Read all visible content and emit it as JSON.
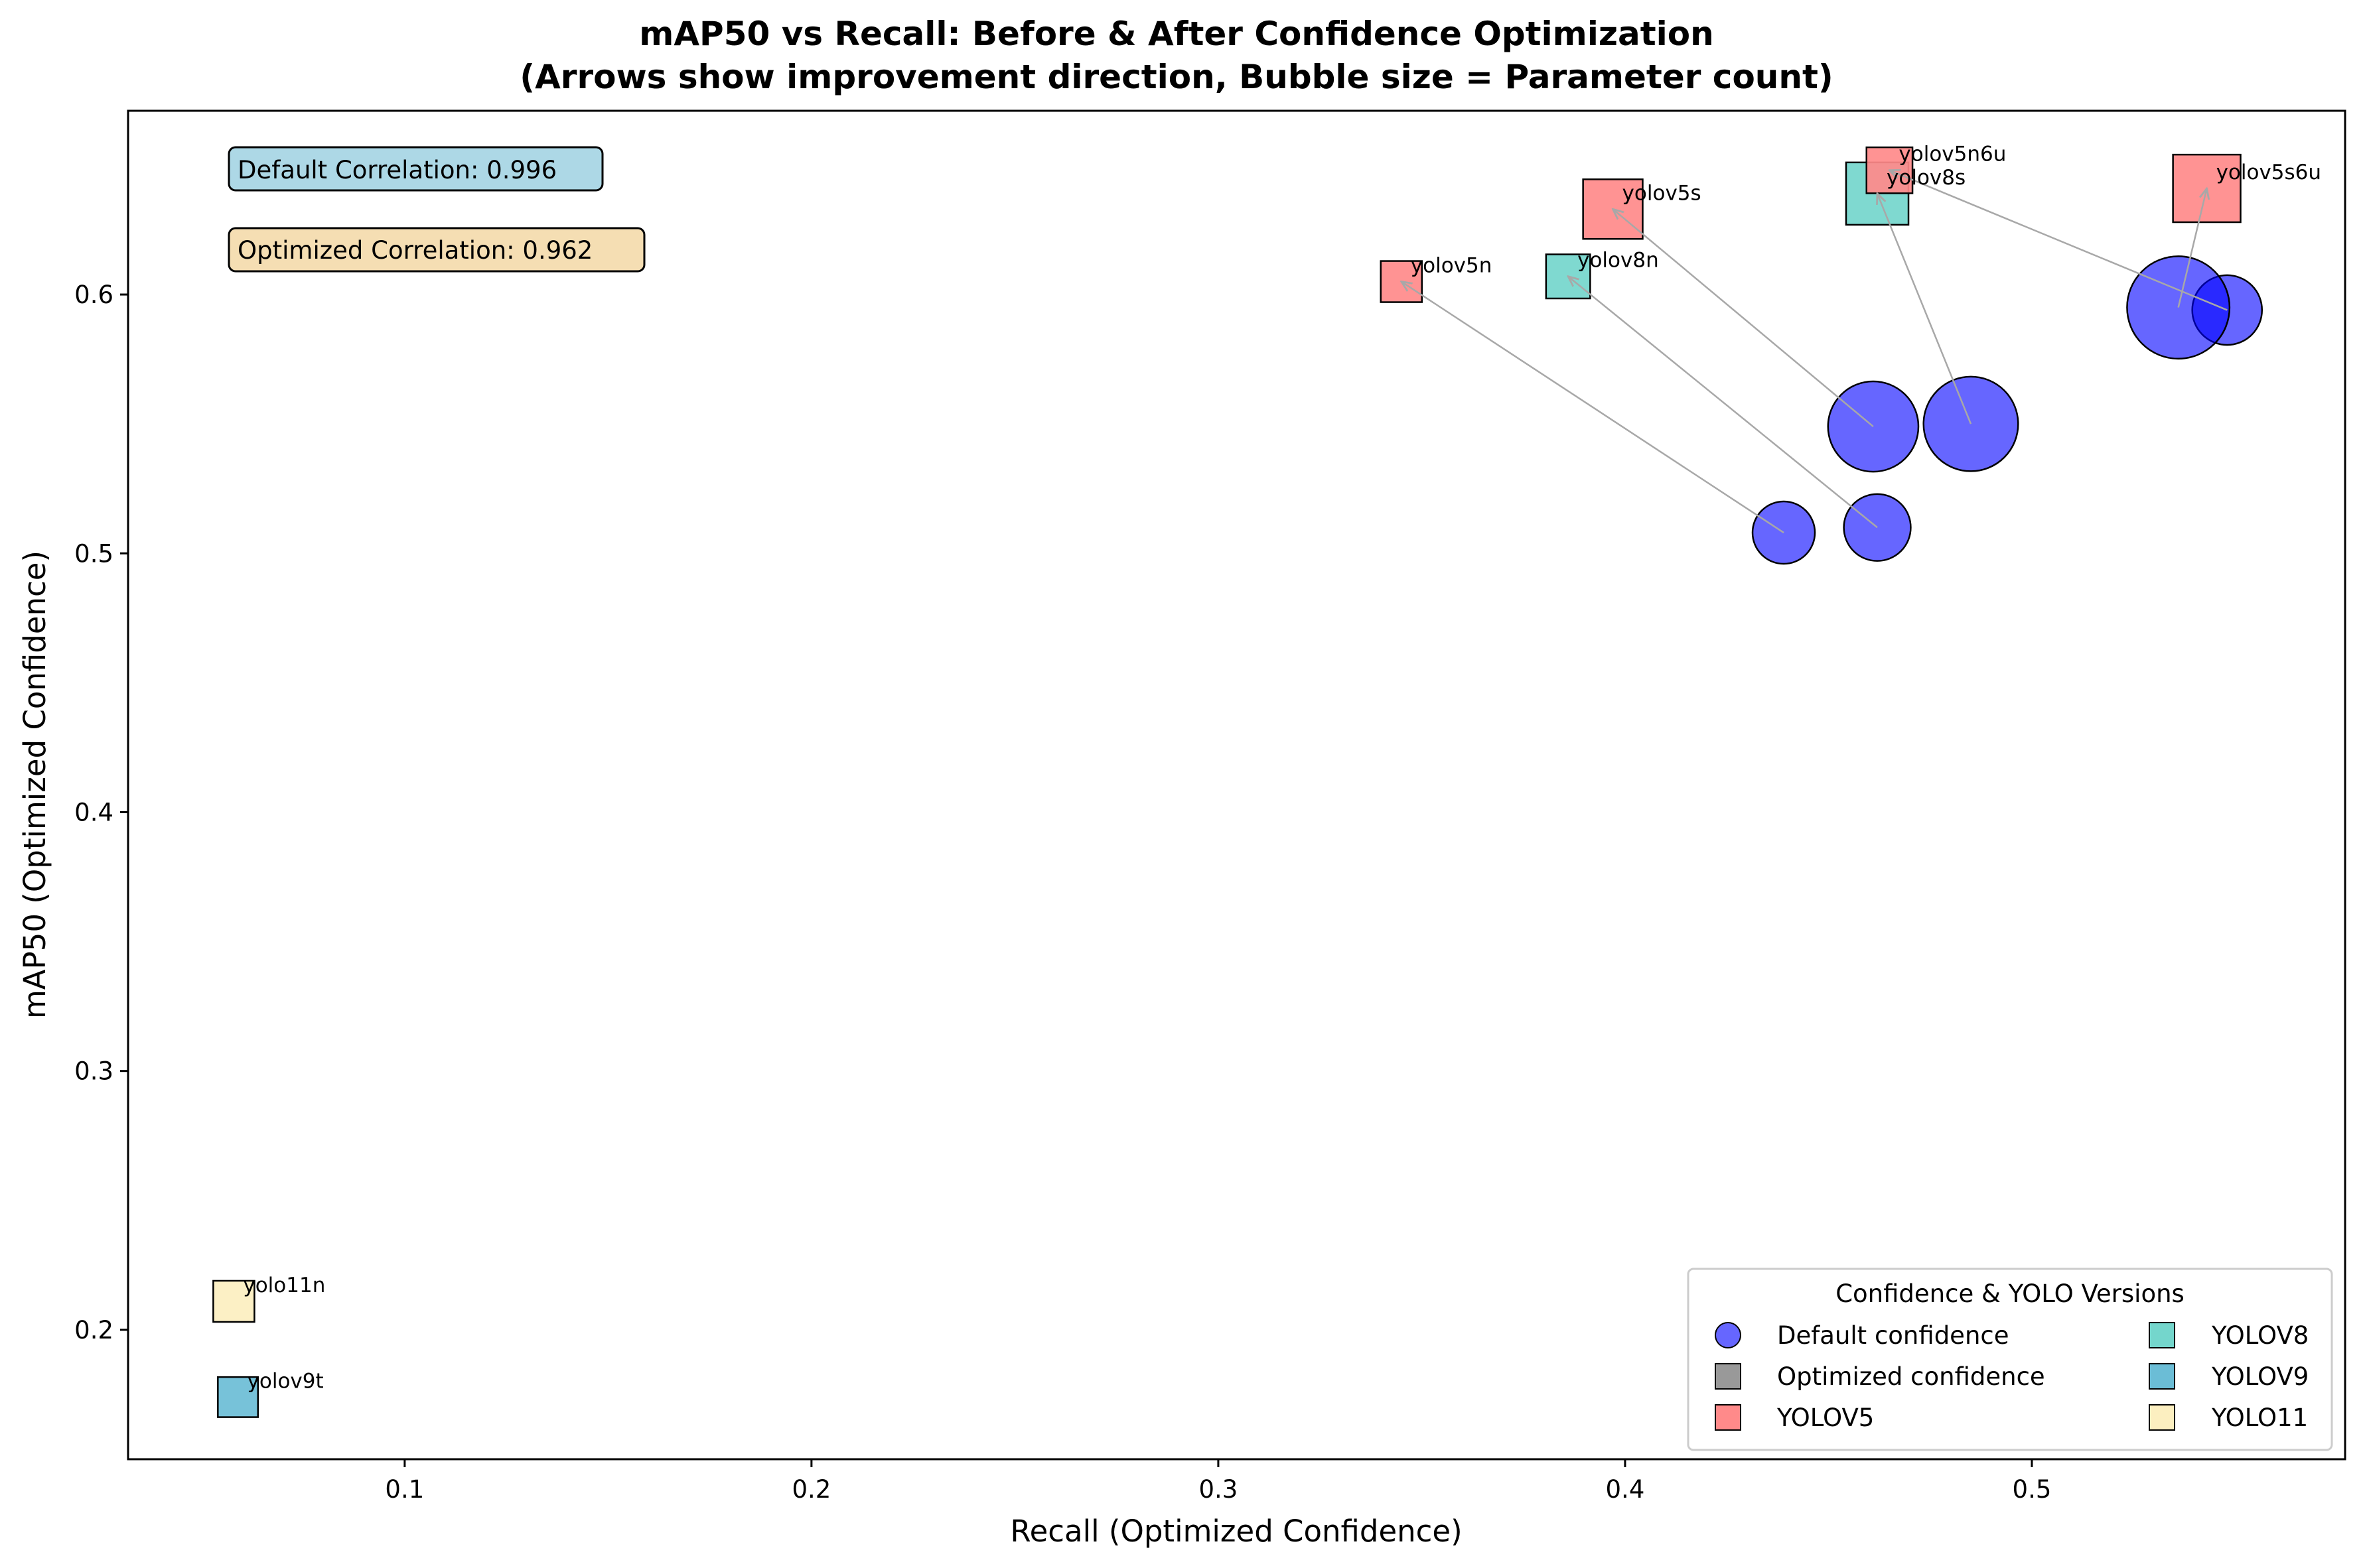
{
  "chart_data": {
    "type": "scatter",
    "title": "mAP50 vs Recall: Before & After Confidence Optimization",
    "subtitle": "(Arrows show improvement direction, Bubble size = Parameter count)",
    "xlabel": "Recall (Optimized Confidence)",
    "ylabel": "mAP50 (Optimized Confidence)",
    "xlim": [
      0.032,
      0.577
    ],
    "ylim": [
      0.15,
      0.671
    ],
    "xticks": [
      0.1,
      0.2,
      0.3,
      0.4,
      0.5
    ],
    "yticks": [
      0.2,
      0.3,
      0.4,
      0.5,
      0.6
    ],
    "grid": false,
    "annotations": {
      "default_correlation": "Default Correlation: 0.996",
      "optimized_correlation": "Optimized Correlation: 0.962"
    },
    "legend": {
      "title": "Confidence & YOLO Versions",
      "placement": "lower-right",
      "entries": [
        {
          "label": "Default confidence",
          "marker": "circle",
          "color": "#6666ff"
        },
        {
          "label": "Optimized confidence",
          "marker": "square",
          "color": "#999999"
        },
        {
          "label": "YOLOV5",
          "marker": "square",
          "color": "#ff8a8a"
        },
        {
          "label": "YOLOV8",
          "marker": "square",
          "color": "#74d6cc"
        },
        {
          "label": "YOLOV9",
          "marker": "square",
          "color": "#6bbdd6"
        },
        {
          "label": "YOLO11",
          "marker": "square",
          "color": "#fcefc0"
        }
      ]
    },
    "series": [
      {
        "name": "yolov5n",
        "version": "YOLOV5",
        "color": "#ff8a8a",
        "default": [
          0.439,
          0.508
        ],
        "optimized": [
          0.345,
          0.605
        ],
        "size": 1
      },
      {
        "name": "yolov8n",
        "version": "YOLOV8",
        "color": "#74d6cc",
        "default": [
          0.462,
          0.51
        ],
        "optimized": [
          0.386,
          0.607
        ],
        "size": 1.15
      },
      {
        "name": "yolov5s",
        "version": "YOLOV5",
        "color": "#ff8a8a",
        "default": [
          0.461,
          0.549
        ],
        "optimized": [
          0.397,
          0.633
        ],
        "size": 2.1
      },
      {
        "name": "yolov8s",
        "version": "YOLOV8",
        "color": "#74d6cc",
        "default": [
          0.485,
          0.55
        ],
        "optimized": [
          0.462,
          0.639
        ],
        "size": 2.3
      },
      {
        "name": "yolov5n6u",
        "version": "YOLOV5",
        "color": "#ff8a8a",
        "default": [
          0.548,
          0.594
        ],
        "optimized": [
          0.465,
          0.648
        ],
        "size": 1.25
      },
      {
        "name": "yolov5s6u",
        "version": "YOLOV5",
        "color": "#ff8a8a",
        "default": [
          0.536,
          0.595
        ],
        "optimized": [
          0.543,
          0.641
        ],
        "size": 2.7
      },
      {
        "name": "yolo11n",
        "version": "YOLO11",
        "color": "#fcefc0",
        "default": null,
        "optimized": [
          0.058,
          0.211
        ],
        "size": 1
      },
      {
        "name": "yolov9t",
        "version": "YOLOV9",
        "color": "#6bbdd6",
        "default": null,
        "optimized": [
          0.059,
          0.174
        ],
        "size": 0.95
      }
    ]
  }
}
